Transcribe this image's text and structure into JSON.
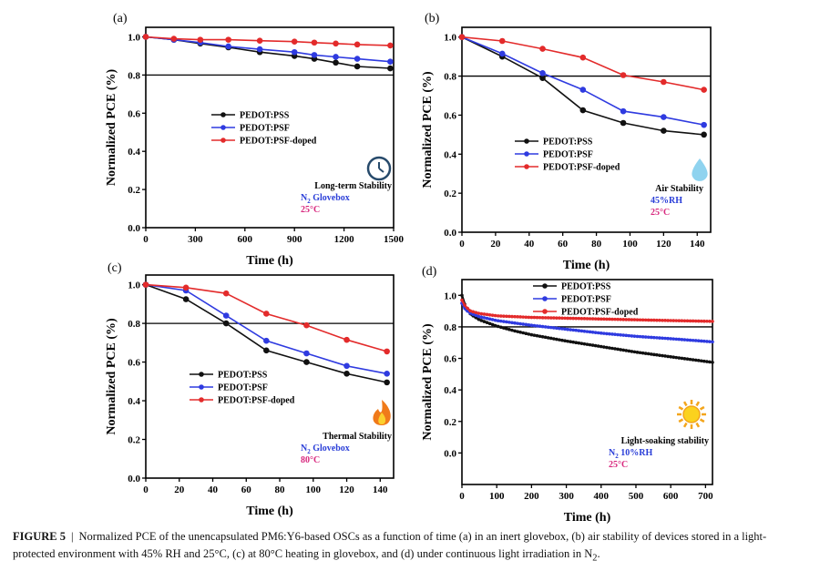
{
  "colors": {
    "pss": "#111111",
    "psf": "#2f3be0",
    "doped": "#e32b2b",
    "ref": "#000000",
    "blue_text": "#2a3ed8",
    "pink_text": "#d8287e"
  },
  "caption": {
    "label": "FIGURE 5",
    "separator": "|",
    "text": "Normalized PCE of the unencapsulated PM6:Y6-based OSCs as a function of time (a) in an inert glovebox, (b) air stability of devices stored in a light-protected environment with 45% RH and 25°C, (c) at 80°C heating in glovebox, and (d) under continuous light irradiation in N",
    "subscript": "2",
    "end": "."
  },
  "chart_data": [
    {
      "panel": "(a)",
      "type": "line",
      "xlabel": "Time (h)",
      "ylabel": "Normalized PCE (%)",
      "xlim": [
        0,
        1500
      ],
      "ylim": [
        0,
        1.05
      ],
      "xticks": [
        0,
        300,
        600,
        900,
        1200,
        1500
      ],
      "xtick_labels": [
        "0",
        "300",
        "600",
        "900",
        "1200",
        "1500"
      ],
      "yticks": [
        0,
        0.2,
        0.4,
        0.6,
        0.8,
        1.0
      ],
      "ytick_labels": [
        "0.0",
        "0.2",
        "0.4",
        "0.6",
        "0.8",
        "1.0"
      ],
      "reference_line": 0.8,
      "legend_position": "center-left",
      "series": [
        {
          "name": "PEDOT:PSS",
          "color_key": "pss",
          "x": [
            0,
            170,
            330,
            500,
            690,
            900,
            1020,
            1150,
            1280,
            1480
          ],
          "y": [
            1.0,
            0.985,
            0.965,
            0.945,
            0.92,
            0.9,
            0.885,
            0.865,
            0.845,
            0.835
          ]
        },
        {
          "name": "PEDOT:PSF",
          "color_key": "psf",
          "x": [
            0,
            170,
            330,
            500,
            690,
            900,
            1020,
            1150,
            1280,
            1480
          ],
          "y": [
            1.0,
            0.985,
            0.97,
            0.95,
            0.935,
            0.92,
            0.905,
            0.895,
            0.885,
            0.87
          ]
        },
        {
          "name": "PEDOT:PSF-doped",
          "color_key": "doped",
          "x": [
            0,
            170,
            330,
            500,
            690,
            900,
            1020,
            1150,
            1280,
            1480
          ],
          "y": [
            1.0,
            0.99,
            0.985,
            0.985,
            0.98,
            0.975,
            0.97,
            0.965,
            0.96,
            0.955
          ]
        }
      ],
      "annotation": {
        "icon": "clock-icon",
        "lines": [
          {
            "text": "Long-term Stability",
            "color_key": "ref"
          },
          {
            "text": "N",
            "sub": "2",
            "tail": " Glovebox",
            "color_key": "blue_text"
          },
          {
            "text": "25°C",
            "color_key": "pink_text"
          }
        ]
      }
    },
    {
      "panel": "(b)",
      "type": "line",
      "xlabel": "Time (h)",
      "ylabel": "Normalized PCE (%)",
      "xlim": [
        0,
        148
      ],
      "ylim": [
        0,
        1.05
      ],
      "xticks": [
        0,
        20,
        40,
        60,
        80,
        100,
        120,
        140
      ],
      "xtick_labels": [
        "0",
        "20",
        "40",
        "60",
        "80",
        "100",
        "120",
        "140"
      ],
      "yticks": [
        0,
        0.2,
        0.4,
        0.6,
        0.8,
        1.0
      ],
      "ytick_labels": [
        "0.0",
        "0.2",
        "0.4",
        "0.6",
        "0.8",
        "1.0"
      ],
      "reference_line": 0.8,
      "legend_position": "bottom-center",
      "series": [
        {
          "name": "PEDOT:PSS",
          "color_key": "pss",
          "x": [
            0,
            24,
            48,
            72,
            96,
            120,
            144
          ],
          "y": [
            1.0,
            0.9,
            0.79,
            0.625,
            0.56,
            0.52,
            0.5
          ]
        },
        {
          "name": "PEDOT:PSF",
          "color_key": "psf",
          "x": [
            0,
            24,
            48,
            72,
            96,
            120,
            144
          ],
          "y": [
            1.0,
            0.915,
            0.815,
            0.73,
            0.62,
            0.59,
            0.55
          ]
        },
        {
          "name": "PEDOT:PSF-doped",
          "color_key": "doped",
          "x": [
            0,
            24,
            48,
            72,
            96,
            120,
            144
          ],
          "y": [
            1.0,
            0.98,
            0.94,
            0.895,
            0.805,
            0.77,
            0.73
          ]
        }
      ],
      "annotation": {
        "icon": "water-drop-icon",
        "lines": [
          {
            "text": "Air Stability",
            "color_key": "ref"
          },
          {
            "text": "45%RH",
            "color_key": "blue_text"
          },
          {
            "text": "25°C",
            "color_key": "pink_text"
          }
        ]
      }
    },
    {
      "panel": "(c)",
      "type": "line",
      "xlabel": "Time (h)",
      "ylabel": "Normalized PCE (%)",
      "xlim": [
        0,
        148
      ],
      "ylim": [
        0,
        1.05
      ],
      "xticks": [
        0,
        20,
        40,
        60,
        80,
        100,
        120,
        140
      ],
      "xtick_labels": [
        "0",
        "20",
        "40",
        "60",
        "80",
        "100",
        "120",
        "140"
      ],
      "yticks": [
        0,
        0.2,
        0.4,
        0.6,
        0.8,
        1.0
      ],
      "ytick_labels": [
        "0.0",
        "0.2",
        "0.4",
        "0.6",
        "0.8",
        "1.0"
      ],
      "reference_line": 0.8,
      "legend_position": "center-left",
      "series": [
        {
          "name": "PEDOT:PSS",
          "color_key": "pss",
          "x": [
            0,
            24,
            48,
            72,
            96,
            120,
            144
          ],
          "y": [
            1.0,
            0.925,
            0.8,
            0.66,
            0.6,
            0.54,
            0.495
          ]
        },
        {
          "name": "PEDOT:PSF",
          "color_key": "psf",
          "x": [
            0,
            24,
            48,
            72,
            96,
            120,
            144
          ],
          "y": [
            1.0,
            0.97,
            0.84,
            0.71,
            0.645,
            0.58,
            0.54
          ]
        },
        {
          "name": "PEDOT:PSF-doped",
          "color_key": "doped",
          "x": [
            0,
            24,
            48,
            72,
            96,
            120,
            144
          ],
          "y": [
            1.0,
            0.985,
            0.955,
            0.85,
            0.79,
            0.715,
            0.655
          ]
        }
      ],
      "annotation": {
        "icon": "flame-icon",
        "lines": [
          {
            "text": "Thermal Stability",
            "color_key": "ref"
          },
          {
            "text": "N",
            "sub": "2",
            "tail": " Glovebox",
            "color_key": "blue_text"
          },
          {
            "text": "80°C",
            "color_key": "pink_text"
          }
        ]
      }
    },
    {
      "panel": "(d)",
      "type": "line",
      "xlabel": "Time (h)",
      "ylabel": "Normalized PCE (%)",
      "xlim": [
        0,
        720
      ],
      "ylim": [
        -0.2,
        1.1
      ],
      "xticks": [
        0,
        100,
        200,
        300,
        400,
        500,
        600,
        700
      ],
      "xtick_labels": [
        "0",
        "100",
        "200",
        "300",
        "400",
        "500",
        "600",
        "700"
      ],
      "yticks": [
        0,
        0.2,
        0.4,
        0.6,
        0.8,
        1.0
      ],
      "ytick_labels": [
        "0.0",
        "0.2",
        "0.4",
        "0.6",
        "0.8",
        "1.0"
      ],
      "reference_line": 0.8,
      "legend_position": "top-center",
      "series": [
        {
          "name": "PEDOT:PSS",
          "color_key": "pss",
          "x": [
            0,
            10,
            25,
            50,
            100,
            150,
            200,
            300,
            400,
            500,
            600,
            720
          ],
          "y": [
            1.0,
            0.93,
            0.88,
            0.845,
            0.805,
            0.775,
            0.75,
            0.71,
            0.675,
            0.64,
            0.61,
            0.575
          ]
        },
        {
          "name": "PEDOT:PSF",
          "color_key": "psf",
          "x": [
            0,
            10,
            25,
            50,
            100,
            150,
            200,
            300,
            400,
            500,
            600,
            720
          ],
          "y": [
            0.95,
            0.91,
            0.885,
            0.865,
            0.84,
            0.825,
            0.81,
            0.785,
            0.76,
            0.74,
            0.725,
            0.705
          ]
        },
        {
          "name": "PEDOT:PSF-doped",
          "color_key": "doped",
          "x": [
            0,
            10,
            25,
            50,
            100,
            150,
            200,
            300,
            400,
            500,
            600,
            720
          ],
          "y": [
            0.97,
            0.93,
            0.9,
            0.885,
            0.87,
            0.865,
            0.86,
            0.855,
            0.85,
            0.845,
            0.84,
            0.835
          ]
        }
      ],
      "annotation": {
        "icon": "sun-icon",
        "lines": [
          {
            "text": "Light-soaking stability",
            "color_key": "ref"
          },
          {
            "text": "N",
            "sub": "2",
            "tail": " 10%RH",
            "color_key": "blue_text"
          },
          {
            "text": "25°C",
            "color_key": "pink_text"
          }
        ]
      }
    }
  ]
}
